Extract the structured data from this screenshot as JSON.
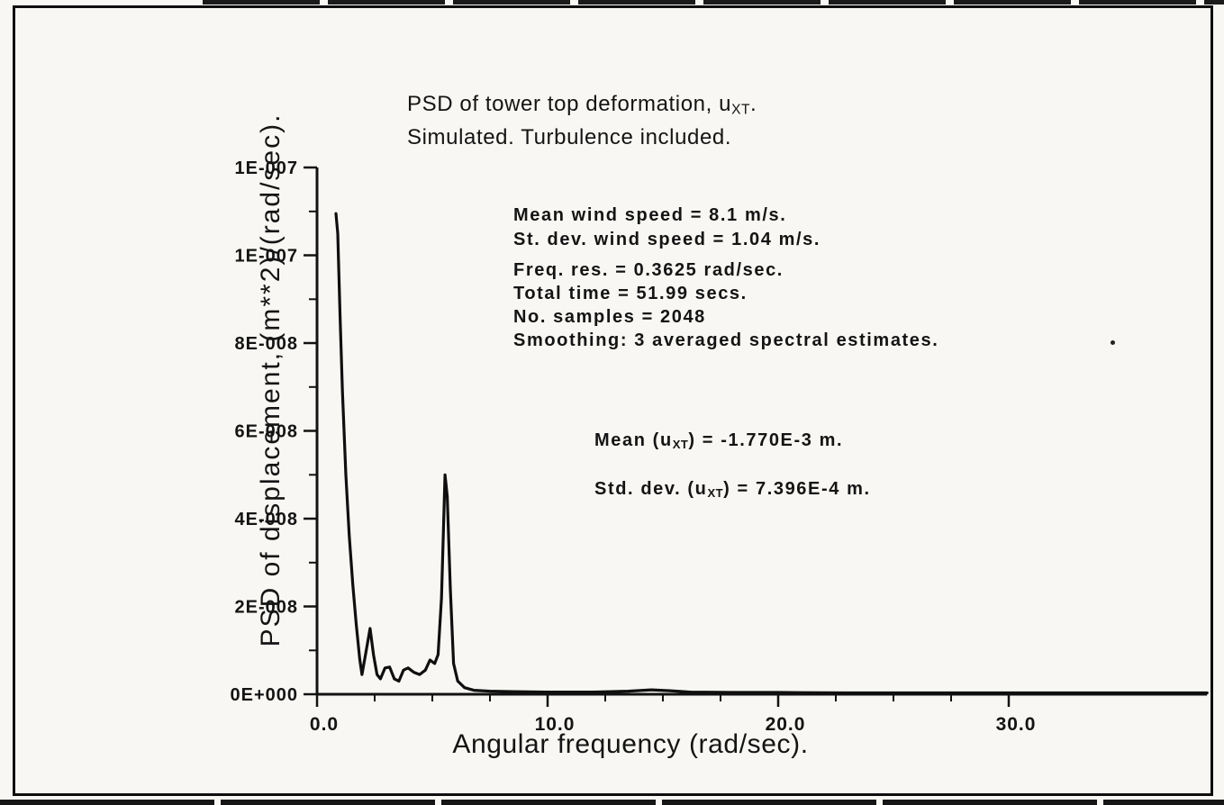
{
  "page": {
    "paper_color": "#f8f7f3",
    "ink_color": "#141414"
  },
  "chart_data": {
    "type": "line",
    "title": {
      "line1_prefix": "PSD of tower top deformation, u",
      "line1_sub": "XT",
      "line1_suffix": ".",
      "line2": "Simulated. Turbulence included."
    },
    "xlabel": "Angular frequency (rad/sec).",
    "ylabel": "PSD of displacement, (m**2)/(rad/sec).",
    "xlim": [
      0,
      38.6
    ],
    "ylim": [
      0,
      1.2e-07
    ],
    "grid": false,
    "legend": null,
    "x_ticks": [
      {
        "value": 0,
        "label": "0.0"
      },
      {
        "value": 10,
        "label": "10.0"
      },
      {
        "value": 20,
        "label": "20.0"
      },
      {
        "value": 30,
        "label": "30.0"
      }
    ],
    "y_ticks": [
      {
        "value": 0,
        "label": "0E+000"
      },
      {
        "value": 2e-08,
        "label": "2E-008"
      },
      {
        "value": 4e-08,
        "label": "4E-008"
      },
      {
        "value": 6e-08,
        "label": "6E-008"
      },
      {
        "value": 8e-08,
        "label": "8E-008"
      },
      {
        "value": 1e-07,
        "label": "1E-007"
      },
      {
        "value": 1.2e-07,
        "label": "1E-007"
      }
    ],
    "x_minor_step": 2.5,
    "y_minor_step": 1e-08,
    "annotations": {
      "wind": [
        "Mean wind speed = 8.1 m/s.",
        "St. dev. wind speed = 1.04 m/s."
      ],
      "analysis": [
        "Freq. res. = 0.3625 rad/sec.",
        "Total time = 51.99 secs.",
        "No. samples = 2048",
        "Smoothing: 3 averaged spectral estimates."
      ],
      "stats": [
        {
          "prefix": "Mean (u",
          "sub": "XT",
          "suffix": ") = -1.770E-3 m."
        },
        {
          "prefix": "Std. dev. (u",
          "sub": "XT",
          "suffix": ") = 7.396E-4 m."
        }
      ]
    },
    "series": [
      {
        "name": "PSD",
        "points": [
          [
            0.82,
            1.095e-07
          ],
          [
            0.9,
            1.05e-07
          ],
          [
            1.0,
            8.6e-08
          ],
          [
            1.1,
            6.9e-08
          ],
          [
            1.25,
            5e-08
          ],
          [
            1.4,
            3.6e-08
          ],
          [
            1.55,
            2.5e-08
          ],
          [
            1.7,
            1.6e-08
          ],
          [
            1.85,
            8e-09
          ],
          [
            1.95,
            4.5e-09
          ],
          [
            2.1,
            9e-09
          ],
          [
            2.3,
            1.5e-08
          ],
          [
            2.45,
            9e-09
          ],
          [
            2.6,
            4.5e-09
          ],
          [
            2.75,
            3.5e-09
          ],
          [
            2.95,
            6e-09
          ],
          [
            3.15,
            6.2e-09
          ],
          [
            3.35,
            3.5e-09
          ],
          [
            3.55,
            3e-09
          ],
          [
            3.75,
            5.5e-09
          ],
          [
            3.95,
            6e-09
          ],
          [
            4.2,
            5e-09
          ],
          [
            4.45,
            4.5e-09
          ],
          [
            4.7,
            5.5e-09
          ],
          [
            4.9,
            7.8e-09
          ],
          [
            5.1,
            7e-09
          ],
          [
            5.25,
            9e-09
          ],
          [
            5.4,
            2.2e-08
          ],
          [
            5.55,
            5e-08
          ],
          [
            5.65,
            4.5e-08
          ],
          [
            5.78,
            2.4e-08
          ],
          [
            5.92,
            7e-09
          ],
          [
            6.1,
            3e-09
          ],
          [
            6.4,
            1.5e-09
          ],
          [
            6.8,
            9e-10
          ],
          [
            7.5,
            7e-10
          ],
          [
            8.5,
            6e-10
          ],
          [
            10,
            5e-10
          ],
          [
            12,
            5e-10
          ],
          [
            13.5,
            7e-10
          ],
          [
            14.5,
            1e-09
          ],
          [
            15.3,
            8e-10
          ],
          [
            16.2,
            5e-10
          ],
          [
            18,
            4e-10
          ],
          [
            20,
            4e-10
          ],
          [
            23,
            3e-10
          ],
          [
            26,
            3e-10
          ],
          [
            30,
            3e-10
          ],
          [
            34,
            3e-10
          ],
          [
            38.6,
            3e-10
          ]
        ]
      }
    ]
  }
}
